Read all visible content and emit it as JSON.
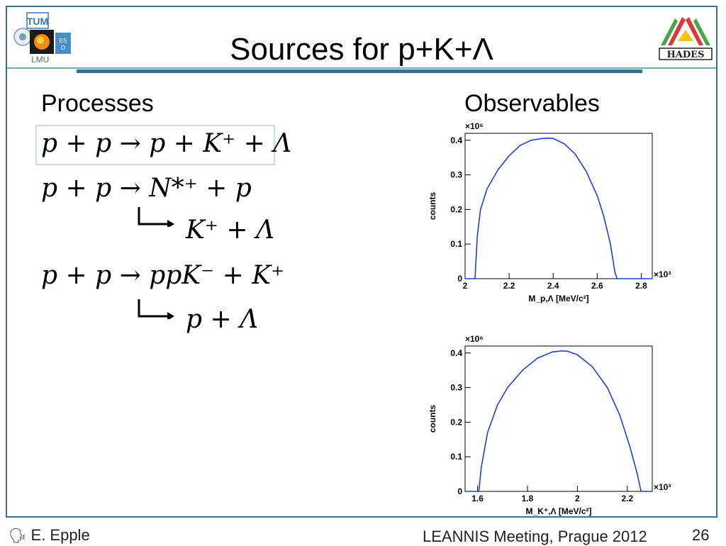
{
  "slide": {
    "title": "Sources for p+K+Λ",
    "left_heading": "Processes",
    "right_heading": "Observables",
    "page_number": "26"
  },
  "equations": {
    "eq1": "p + p → p + K⁺ + Λ",
    "eq2": "p + p → N*⁺ + p",
    "eq2_decay": "K⁺ + Λ",
    "eq3": "p + p → ppK⁻ + K⁺",
    "eq3_decay": "p + Λ"
  },
  "footer": {
    "author": "E. Epple",
    "meeting": "LEANNIS Meeting, Prague 2012"
  },
  "logos": {
    "left": [
      "TUM",
      "LMU"
    ],
    "right": "HADES"
  },
  "chart_data": [
    {
      "type": "line",
      "xlabel": "M_p,Λ [MeV/c²]",
      "ylabel": "counts",
      "x_multiplier": "×10³",
      "y_multiplier": "×10⁶",
      "xlim": [
        2.0,
        2.85
      ],
      "ylim": [
        0,
        0.42
      ],
      "xticks": [
        "2",
        "2.2",
        "2.4",
        "2.6",
        "2.8"
      ],
      "yticks": [
        "0",
        "0.1",
        "0.2",
        "0.3",
        "0.4"
      ],
      "color": "#1f3fd6",
      "series": [
        {
          "x": [
            2.0,
            2.045,
            2.055,
            2.07,
            2.1,
            2.15,
            2.2,
            2.25,
            2.3,
            2.35,
            2.38,
            2.4,
            2.45,
            2.5,
            2.55,
            2.6,
            2.63,
            2.66,
            2.68,
            2.69,
            2.85
          ],
          "y": [
            0,
            0,
            0.12,
            0.2,
            0.26,
            0.315,
            0.355,
            0.385,
            0.4,
            0.405,
            0.406,
            0.405,
            0.39,
            0.36,
            0.31,
            0.24,
            0.18,
            0.1,
            0.02,
            0,
            0
          ]
        }
      ]
    },
    {
      "type": "line",
      "xlabel": "M_K⁺,Λ [MeV/c²]",
      "ylabel": "counts",
      "x_multiplier": "×10³",
      "y_multiplier": "×10⁶",
      "xlim": [
        1.55,
        2.3
      ],
      "ylim": [
        0,
        0.42
      ],
      "xticks": [
        "1.6",
        "1.8",
        "2",
        "2.2"
      ],
      "yticks": [
        "0",
        "0.1",
        "0.2",
        "0.3",
        "0.4"
      ],
      "color": "#1f3fd6",
      "series": [
        {
          "x": [
            1.55,
            1.605,
            1.615,
            1.64,
            1.68,
            1.72,
            1.78,
            1.84,
            1.9,
            1.94,
            1.96,
            2.0,
            2.06,
            2.12,
            2.17,
            2.21,
            2.24,
            2.255,
            2.3
          ],
          "y": [
            0,
            0,
            0.07,
            0.17,
            0.25,
            0.3,
            0.35,
            0.385,
            0.403,
            0.406,
            0.405,
            0.395,
            0.36,
            0.3,
            0.22,
            0.13,
            0.05,
            0,
            0
          ]
        }
      ]
    }
  ]
}
